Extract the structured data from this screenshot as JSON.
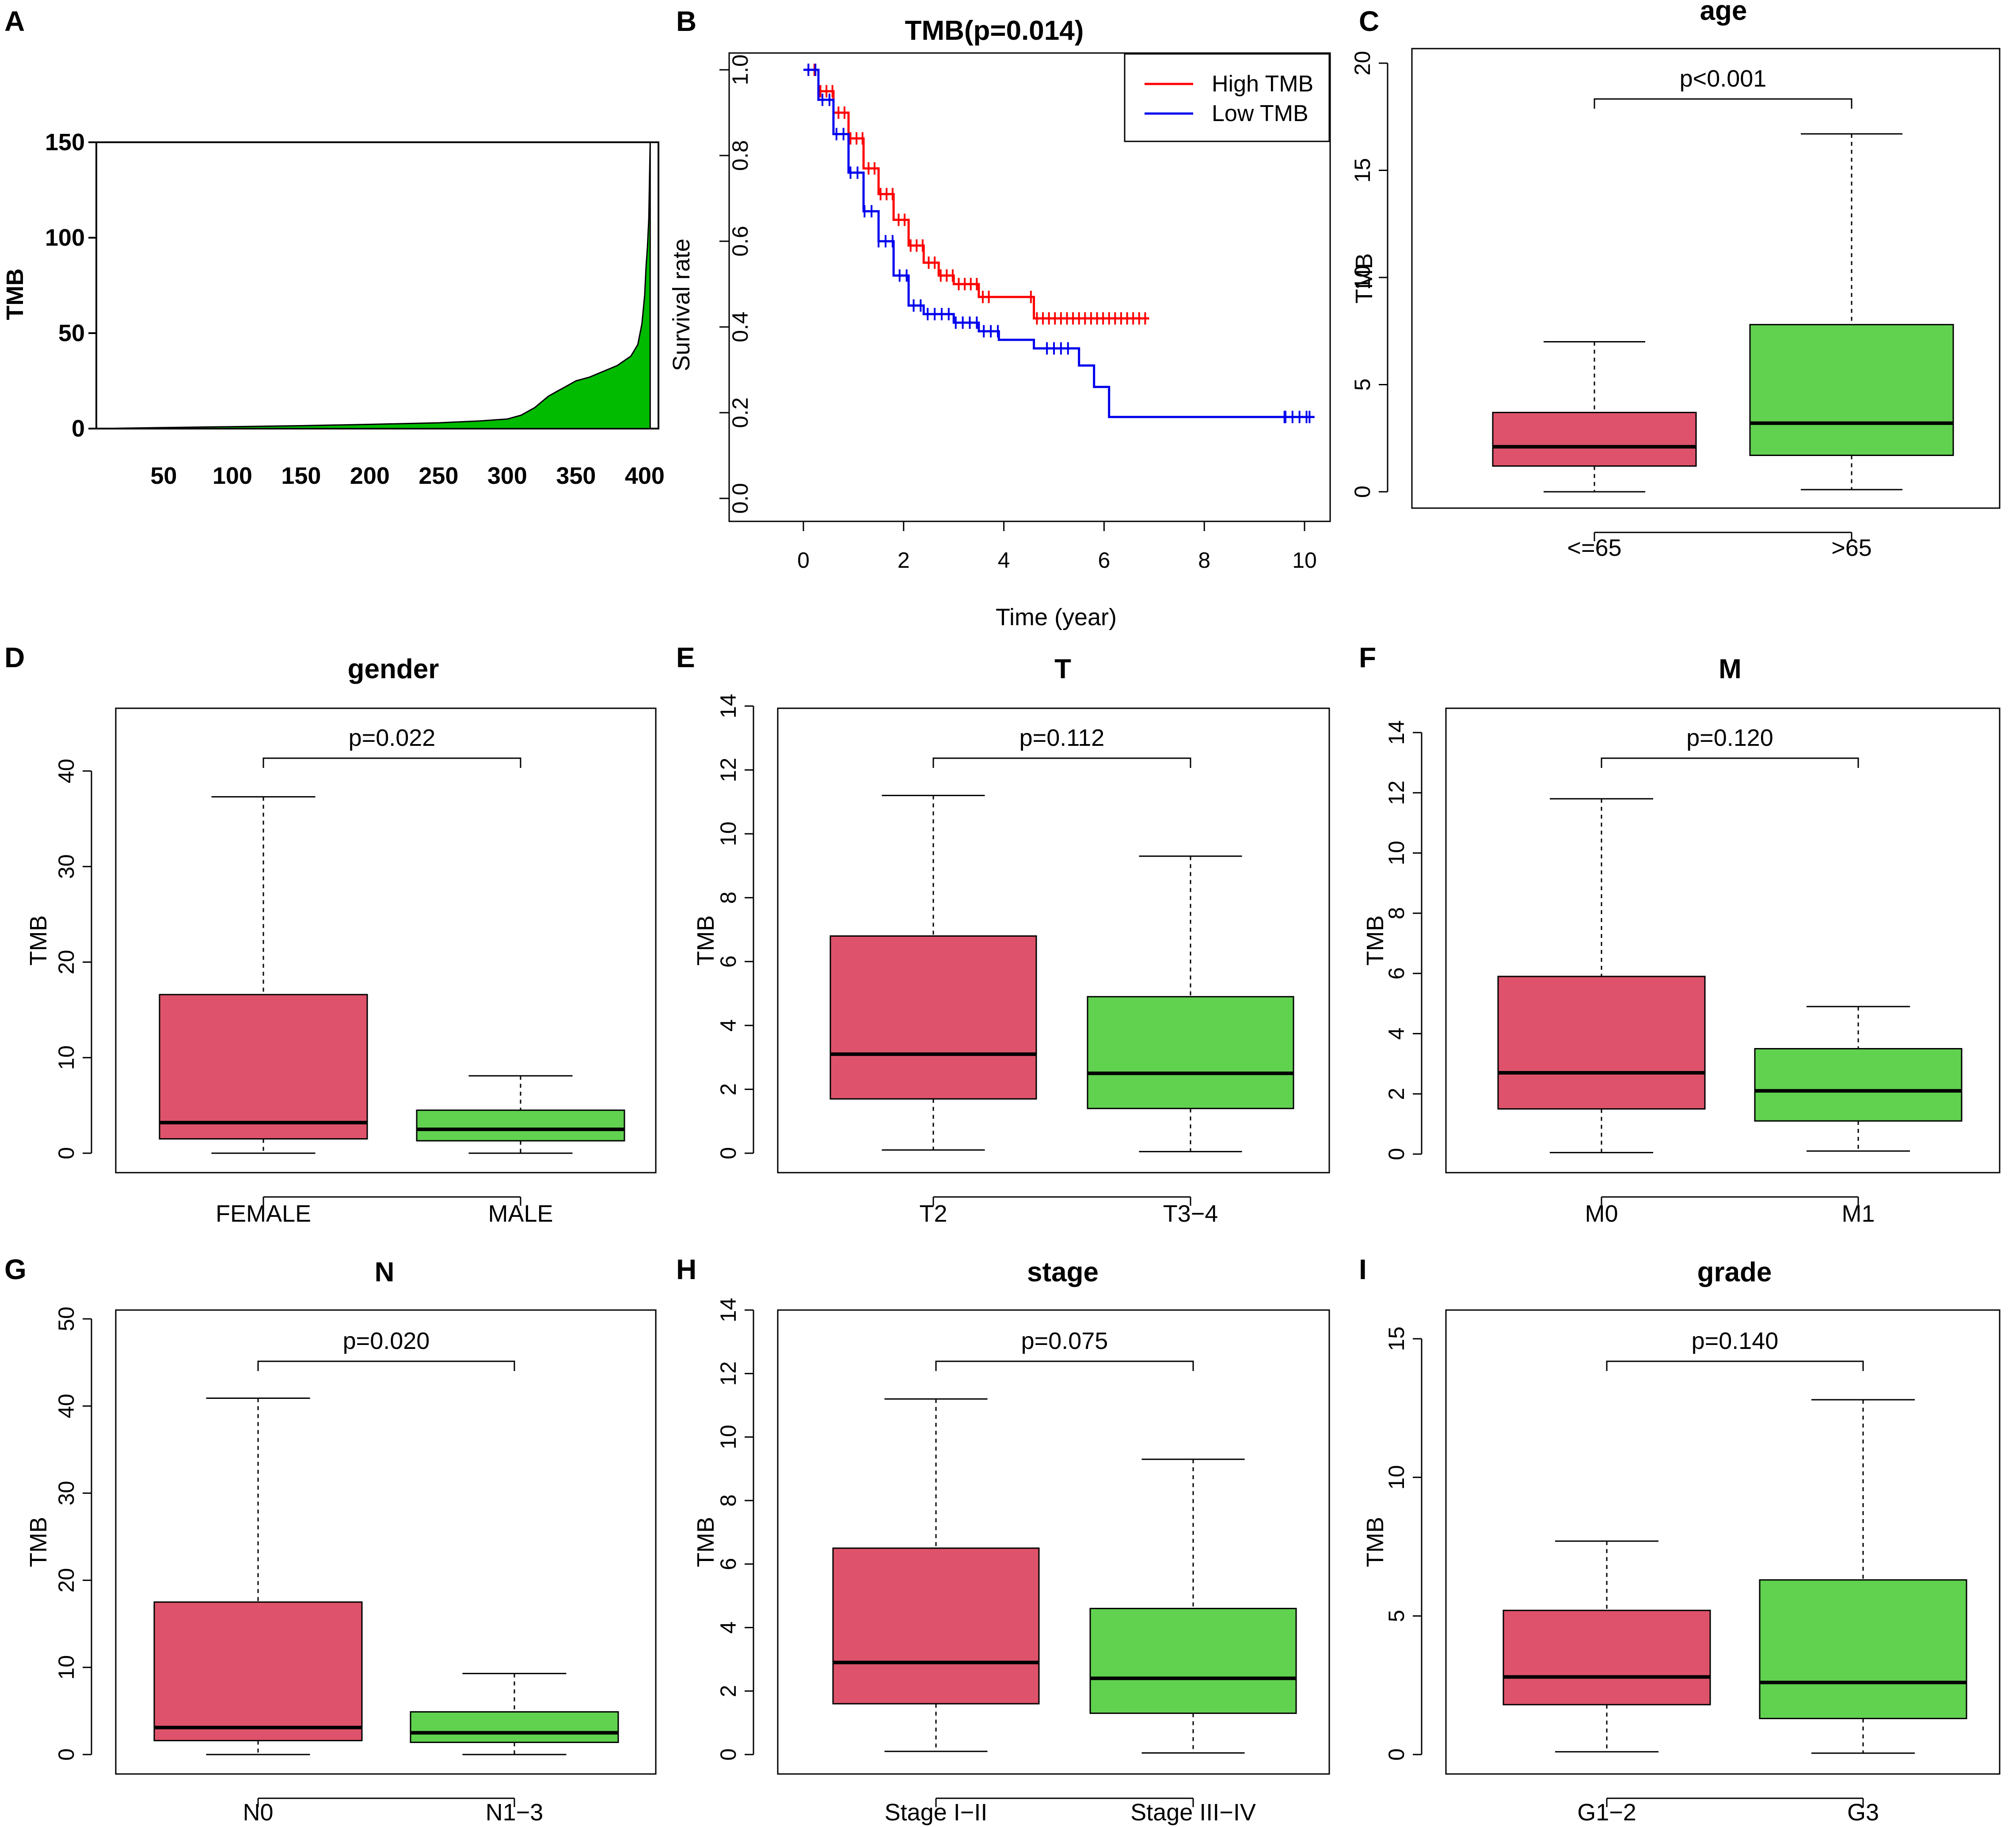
{
  "colors": {
    "red_box": "#de536b",
    "green_box": "#61d150",
    "area_fill": "#00bb00",
    "km_high": "#ff0000",
    "km_low": "#0000ee"
  },
  "chart_data": [
    {
      "panel": "A",
      "type": "area",
      "title": "",
      "xlabel": "",
      "ylabel": "TMB",
      "x_ticks": [
        "50",
        "100",
        "150",
        "200",
        "250",
        "300",
        "350",
        "400"
      ],
      "y_ticks": [
        "0",
        "50",
        "100",
        "150"
      ],
      "xlim": [
        1,
        410
      ],
      "ylim": [
        0,
        150
      ],
      "x": [
        1,
        50,
        100,
        150,
        200,
        250,
        280,
        300,
        310,
        320,
        330,
        340,
        350,
        360,
        370,
        380,
        390,
        395,
        398,
        400,
        401,
        402,
        403,
        404
      ],
      "y": [
        0,
        0.5,
        1,
        1.5,
        2.2,
        3,
        4,
        5,
        7,
        11,
        17,
        21,
        25,
        27,
        30,
        33,
        38,
        44,
        55,
        70,
        85,
        95,
        110,
        150
      ]
    },
    {
      "panel": "B",
      "type": "line",
      "title": "TMB(p=0.014)",
      "xlabel": "Time (year)",
      "ylabel": "Survival rate",
      "x_ticks": [
        "0",
        "2",
        "4",
        "6",
        "8",
        "10"
      ],
      "y_ticks": [
        "0.0",
        "0.2",
        "0.4",
        "0.6",
        "0.8",
        "1.0"
      ],
      "xlim": [
        0,
        10
      ],
      "ylim": [
        0,
        1
      ],
      "legend": [
        "High TMB",
        "Low TMB"
      ],
      "series": [
        {
          "name": "High TMB",
          "time": [
            0,
            0.3,
            0.6,
            0.9,
            1.2,
            1.5,
            1.8,
            2.1,
            2.4,
            2.7,
            3.0,
            3.5,
            4.6,
            6.9
          ],
          "survival": [
            1.0,
            0.95,
            0.9,
            0.84,
            0.77,
            0.71,
            0.65,
            0.59,
            0.55,
            0.52,
            0.5,
            0.47,
            0.42,
            0.42
          ]
        },
        {
          "name": "Low TMB",
          "time": [
            0,
            0.3,
            0.6,
            0.9,
            1.2,
            1.5,
            1.8,
            2.1,
            2.4,
            3.0,
            3.5,
            3.9,
            4.6,
            5.5,
            5.8,
            6.1,
            10.2
          ],
          "survival": [
            1.0,
            0.93,
            0.85,
            0.76,
            0.67,
            0.6,
            0.52,
            0.45,
            0.43,
            0.41,
            0.39,
            0.37,
            0.35,
            0.31,
            0.26,
            0.19,
            0.19
          ]
        }
      ]
    },
    {
      "panel": "C",
      "type": "boxplot",
      "title": "age",
      "ylabel": "TMB",
      "categories": [
        "<=65",
        ">65"
      ],
      "ylim": [
        0,
        20
      ],
      "y_ticks": [
        0,
        5,
        10,
        15,
        20
      ],
      "p_value": "p<0.001",
      "boxes": [
        {
          "min": 0,
          "q1": 1.2,
          "median": 2.1,
          "q3": 3.7,
          "max": 7.0
        },
        {
          "min": 0.1,
          "q1": 1.7,
          "median": 3.2,
          "q3": 7.8,
          "max": 16.7
        }
      ]
    },
    {
      "panel": "D",
      "type": "boxplot",
      "title": "gender",
      "ylabel": "TMB",
      "categories": [
        "FEMALE",
        "MALE"
      ],
      "ylim": [
        0,
        40
      ],
      "y_ticks": [
        0,
        10,
        20,
        30,
        40
      ],
      "p_value": "p=0.022",
      "boxes": [
        {
          "min": 0,
          "q1": 1.5,
          "median": 3.2,
          "q3": 16.6,
          "max": 37.3
        },
        {
          "min": 0,
          "q1": 1.3,
          "median": 2.5,
          "q3": 4.5,
          "max": 8.1
        }
      ]
    },
    {
      "panel": "E",
      "type": "boxplot",
      "title": "T",
      "ylabel": "TMB",
      "categories": [
        "T2",
        "T3−4"
      ],
      "ylim": [
        0,
        14
      ],
      "y_ticks": [
        0,
        2,
        4,
        6,
        8,
        10,
        12,
        14
      ],
      "p_value": "p=0.112",
      "boxes": [
        {
          "min": 0.1,
          "q1": 1.7,
          "median": 3.1,
          "q3": 6.8,
          "max": 11.2
        },
        {
          "min": 0.05,
          "q1": 1.4,
          "median": 2.5,
          "q3": 4.9,
          "max": 9.3
        }
      ]
    },
    {
      "panel": "F",
      "type": "boxplot",
      "title": "M",
      "ylabel": "TMB",
      "categories": [
        "M0",
        "M1"
      ],
      "ylim": [
        0,
        14
      ],
      "y_ticks": [
        0,
        2,
        4,
        6,
        8,
        10,
        12,
        14
      ],
      "p_value": "p=0.120",
      "boxes": [
        {
          "min": 0.05,
          "q1": 1.5,
          "median": 2.7,
          "q3": 5.9,
          "max": 11.8
        },
        {
          "min": 0.1,
          "q1": 1.1,
          "median": 2.1,
          "q3": 3.5,
          "max": 4.9
        }
      ]
    },
    {
      "panel": "G",
      "type": "boxplot",
      "title": "N",
      "ylabel": "TMB",
      "categories": [
        "N0",
        "N1−3"
      ],
      "ylim": [
        0,
        50
      ],
      "y_ticks": [
        0,
        10,
        20,
        30,
        40,
        50
      ],
      "p_value": "p=0.020",
      "boxes": [
        {
          "min": 0,
          "q1": 1.6,
          "median": 3.1,
          "q3": 17.5,
          "max": 40.9
        },
        {
          "min": 0,
          "q1": 1.4,
          "median": 2.5,
          "q3": 4.9,
          "max": 9.3
        }
      ]
    },
    {
      "panel": "H",
      "type": "boxplot",
      "title": "stage",
      "ylabel": "TMB",
      "categories": [
        "Stage I−II",
        "Stage III−IV"
      ],
      "ylim": [
        0,
        14
      ],
      "y_ticks": [
        0,
        2,
        4,
        6,
        8,
        10,
        12,
        14
      ],
      "p_value": "p=0.075",
      "boxes": [
        {
          "min": 0.1,
          "q1": 1.6,
          "median": 2.9,
          "q3": 6.5,
          "max": 11.2
        },
        {
          "min": 0.05,
          "q1": 1.3,
          "median": 2.4,
          "q3": 4.6,
          "max": 9.3
        }
      ]
    },
    {
      "panel": "I",
      "type": "boxplot",
      "title": "grade",
      "ylabel": "TMB",
      "categories": [
        "G1−2",
        "G3"
      ],
      "ylim": [
        0,
        15
      ],
      "y_ticks": [
        0,
        5,
        10,
        15
      ],
      "p_value": "p=0.140",
      "boxes": [
        {
          "min": 0.1,
          "q1": 1.8,
          "median": 2.8,
          "q3": 5.2,
          "max": 7.7
        },
        {
          "min": 0.05,
          "q1": 1.3,
          "median": 2.6,
          "q3": 6.3,
          "max": 12.8
        }
      ]
    }
  ]
}
